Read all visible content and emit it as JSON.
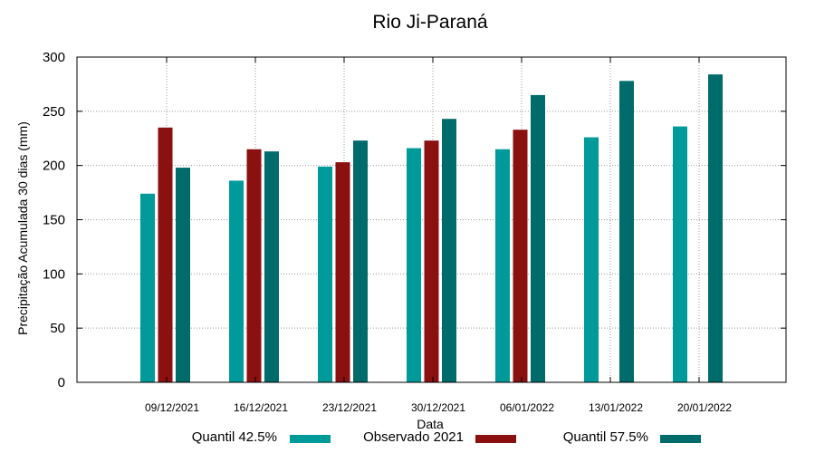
{
  "chart_data": {
    "type": "bar",
    "title": "Rio Ji-Paraná",
    "xlabel": "Data",
    "ylabel": "Precipitação Acumulada 30 dias (mm)",
    "ylim": [
      0,
      300
    ],
    "yticks": [
      0,
      50,
      100,
      150,
      200,
      250,
      300
    ],
    "grid": true,
    "legend_position": "bottom",
    "categories": [
      "09/12/2021",
      "16/12/2021",
      "23/12/2021",
      "30/12/2021",
      "06/01/2022",
      "13/01/2022",
      "20/01/2022"
    ],
    "series": [
      {
        "name": "Quantil 42.5%",
        "color": "#009a9a",
        "values": [
          174,
          186,
          199,
          216,
          215,
          226,
          236
        ]
      },
      {
        "name": "Observado 2021",
        "color": "#8b1010",
        "values": [
          235,
          215,
          203,
          223,
          233,
          null,
          null
        ]
      },
      {
        "name": "Quantil 57.5%",
        "color": "#006b6b",
        "values": [
          198,
          213,
          223,
          243,
          265,
          278,
          284
        ]
      }
    ]
  }
}
